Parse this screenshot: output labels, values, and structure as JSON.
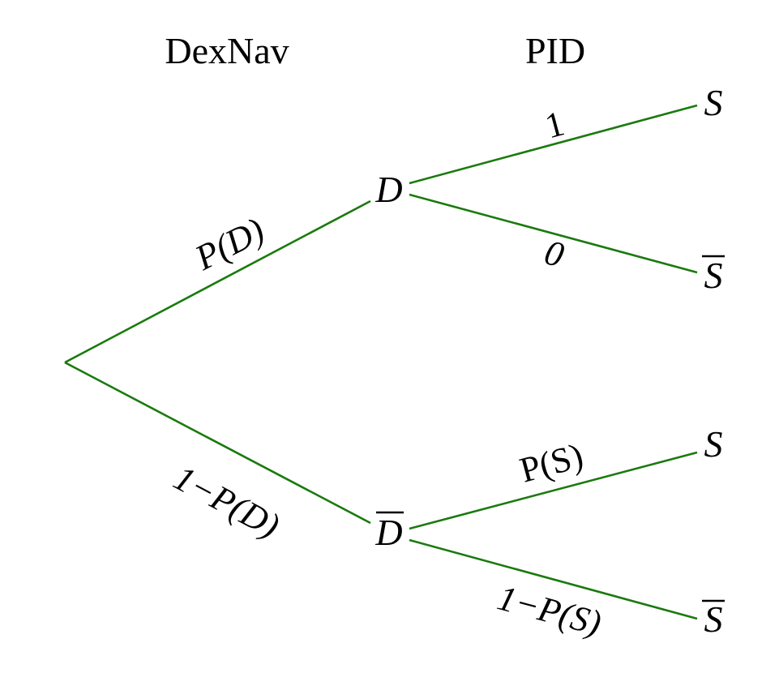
{
  "headers": {
    "level1": "DexNav",
    "level2": "PID"
  },
  "nodes": {
    "d": "D",
    "not_d": "D",
    "s_top": "S",
    "not_s_top": "S",
    "s_bottom": "S",
    "not_s_bottom": "S"
  },
  "probabilities": {
    "p_d": "P(D)",
    "one_minus_p_d": "1−P(D)",
    "one": "1",
    "zero": "0",
    "p_s": "P(S)",
    "one_minus_p_s": "1−P(S)"
  },
  "colors": {
    "branch": "#1a7a0e",
    "text": "#000000"
  }
}
